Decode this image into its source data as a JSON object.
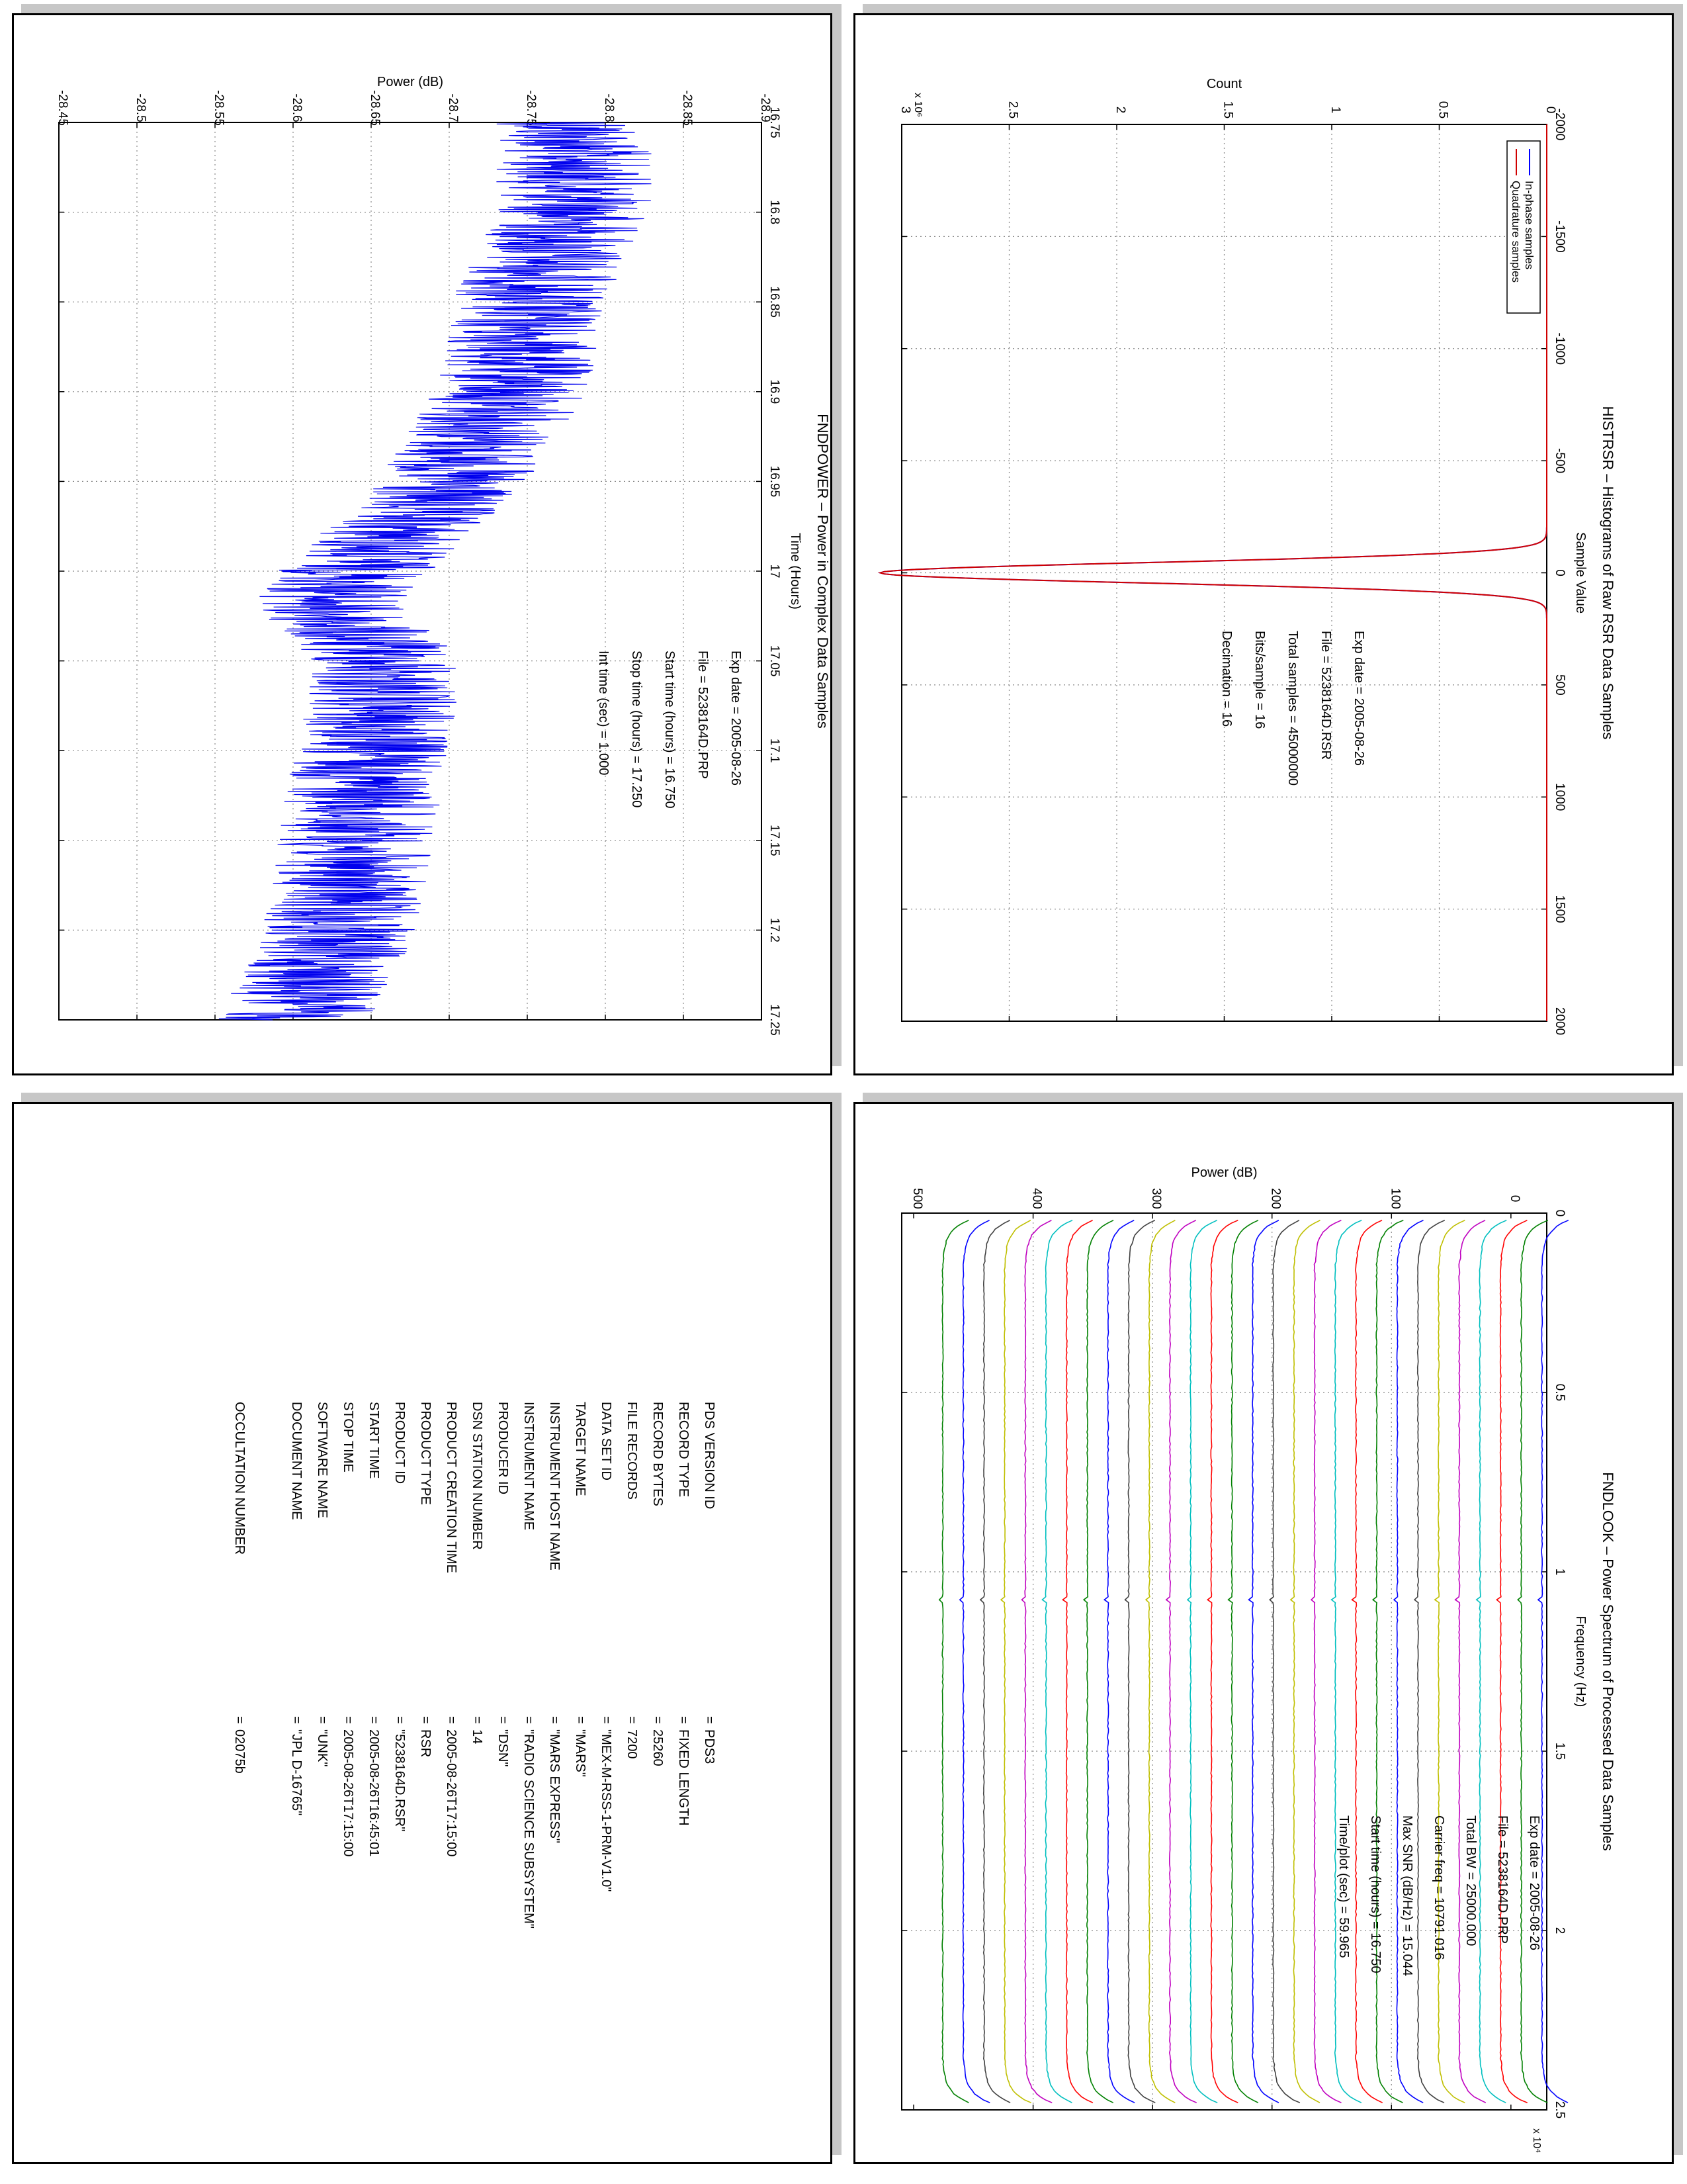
{
  "colors": {
    "in_phase": "#0000ff",
    "quadrature": "#d00000",
    "power_line": "#0000ee",
    "look_cycle": [
      "#0000ff",
      "#008000",
      "#ff0000",
      "#00bfbf",
      "#bf00bf",
      "#bfbf00",
      "#404040"
    ]
  },
  "chart_data": [
    {
      "id": "histrsr",
      "type": "line",
      "orientation": "rotated-90-clockwise",
      "title": "HISTRSR – Histograms of Raw RSR Data Samples",
      "xlabel": "Sample Value",
      "ylabel": "Count",
      "y_exponent": "x 10⁶",
      "xlim": [
        -2000,
        2000
      ],
      "ylim": [
        0,
        3
      ],
      "xticks": [
        "-2000",
        "-1500",
        "-1000",
        "-500",
        "0",
        "500",
        "1000",
        "1500",
        "2000"
      ],
      "yticks": [
        "0",
        "0.5",
        "1",
        "1.5",
        "2",
        "2.5",
        "3"
      ],
      "grid": true,
      "legend_position": "top-right",
      "series": [
        {
          "name": "In-phase samples",
          "peak_x": 0,
          "peak_y": 3.1,
          "sigma": 45
        },
        {
          "name": "Quadrature samples",
          "peak_x": 0,
          "peak_y": 3.1,
          "sigma": 45
        }
      ],
      "info": [
        "Exp date = 2005-08-26",
        "File = 5238164D.RSR",
        "Total samples =   45000000",
        "Bits/sample  =     16",
        "Decimation  =     16"
      ]
    },
    {
      "id": "fndpower",
      "type": "line",
      "orientation": "rotated-90-clockwise",
      "title": "FNDPOWER – Power in Complex Data Samples",
      "xlabel": "Time (Hours)",
      "ylabel": "Power (dB)",
      "xlim": [
        16.75,
        17.25
      ],
      "ylim": [
        -28.9,
        -28.45
      ],
      "xticks": [
        "16.75",
        "16.8",
        "16.85",
        "16.9",
        "16.95",
        "17",
        "17.05",
        "17.1",
        "17.15",
        "17.2",
        "17.25"
      ],
      "yticks": [
        "-28.9",
        "-28.85",
        "-28.8",
        "-28.75",
        "-28.7",
        "-28.65",
        "-28.6",
        "-28.55",
        "-28.5",
        "-28.45"
      ],
      "grid": true,
      "trend": {
        "x": [
          16.75,
          16.8,
          16.85,
          16.9,
          16.95,
          17.0,
          17.02,
          17.05,
          17.1,
          17.15,
          17.2,
          17.25
        ],
        "y": [
          -28.78,
          -28.78,
          -28.75,
          -28.74,
          -28.7,
          -28.64,
          -28.62,
          -28.66,
          -28.65,
          -28.64,
          -28.63,
          -28.6
        ]
      },
      "noise_amplitude_db": 0.05,
      "info": [
        "Exp date = 2005-08-26",
        "File = 5238164D.PRP",
        "Start time (hours) = 16.750",
        "Stop time (hours) = 17.250",
        "Int time (sec) =     1.000"
      ]
    },
    {
      "id": "fndlook",
      "type": "line",
      "orientation": "rotated-90-clockwise",
      "title": "FNDLOOK – Power Spectrum of Processed Data Samples",
      "xlabel": "Frequency (Hz)",
      "ylabel": "Power (dB)",
      "x_exponent": "x 10⁴",
      "xlim": [
        0,
        2.5
      ],
      "ylim": [
        -30,
        510
      ],
      "xticks": [
        "0",
        "0.5",
        "1",
        "1.5",
        "2",
        "2.5"
      ],
      "yticks": [
        "0",
        "100",
        "200",
        "300",
        "400",
        "500"
      ],
      "grid": true,
      "trace_count": 30,
      "trace_spacing_db": 17.3,
      "first_trace_db": -26,
      "info": [
        "Exp date = 2005-08-26",
        "File = 5238164D.PRP",
        "Total BW =     25000.000",
        "Carrier freq =  10791.016",
        "Max SNR (dB/Hz) =   15.044",
        "Start time (hours) =  16.750",
        "Time/plot (sec) =    59.965"
      ]
    }
  ],
  "label": {
    "keys": [
      "PDS VERSION ID",
      "RECORD TYPE",
      "RECORD BYTES",
      "FILE RECORDS",
      "DATA SET ID",
      "TARGET NAME",
      "INSTRUMENT HOST NAME",
      "INSTRUMENT NAME",
      "PRODUCER ID",
      "DSN STATION NUMBER",
      "PRODUCT CREATION TIME",
      "PRODUCT TYPE",
      "PRODUCT ID",
      "START TIME",
      "STOP TIME",
      "SOFTWARE NAME",
      "DOCUMENT NAME",
      "OCCULTATION NUMBER"
    ],
    "values": [
      "PDS3",
      "FIXED LENGTH",
      "25260",
      "7200",
      "\"MEX-M-RSS-1-PRM-V1.0\"",
      "\"MARS\"",
      "\"MARS EXPRESS\"",
      "\"RADIO SCIENCE SUBSYSTEM\"",
      "\"DSN\"",
      "14",
      "2005-08-26T17:15:00",
      "RSR",
      "\"5238164D.RSR\"",
      "2005-08-26T16:45:01",
      "2005-08-26T17:15:00",
      "\"UNK\"",
      "\"JPL D-16765\"",
      "02075b"
    ],
    "equals": "="
  }
}
